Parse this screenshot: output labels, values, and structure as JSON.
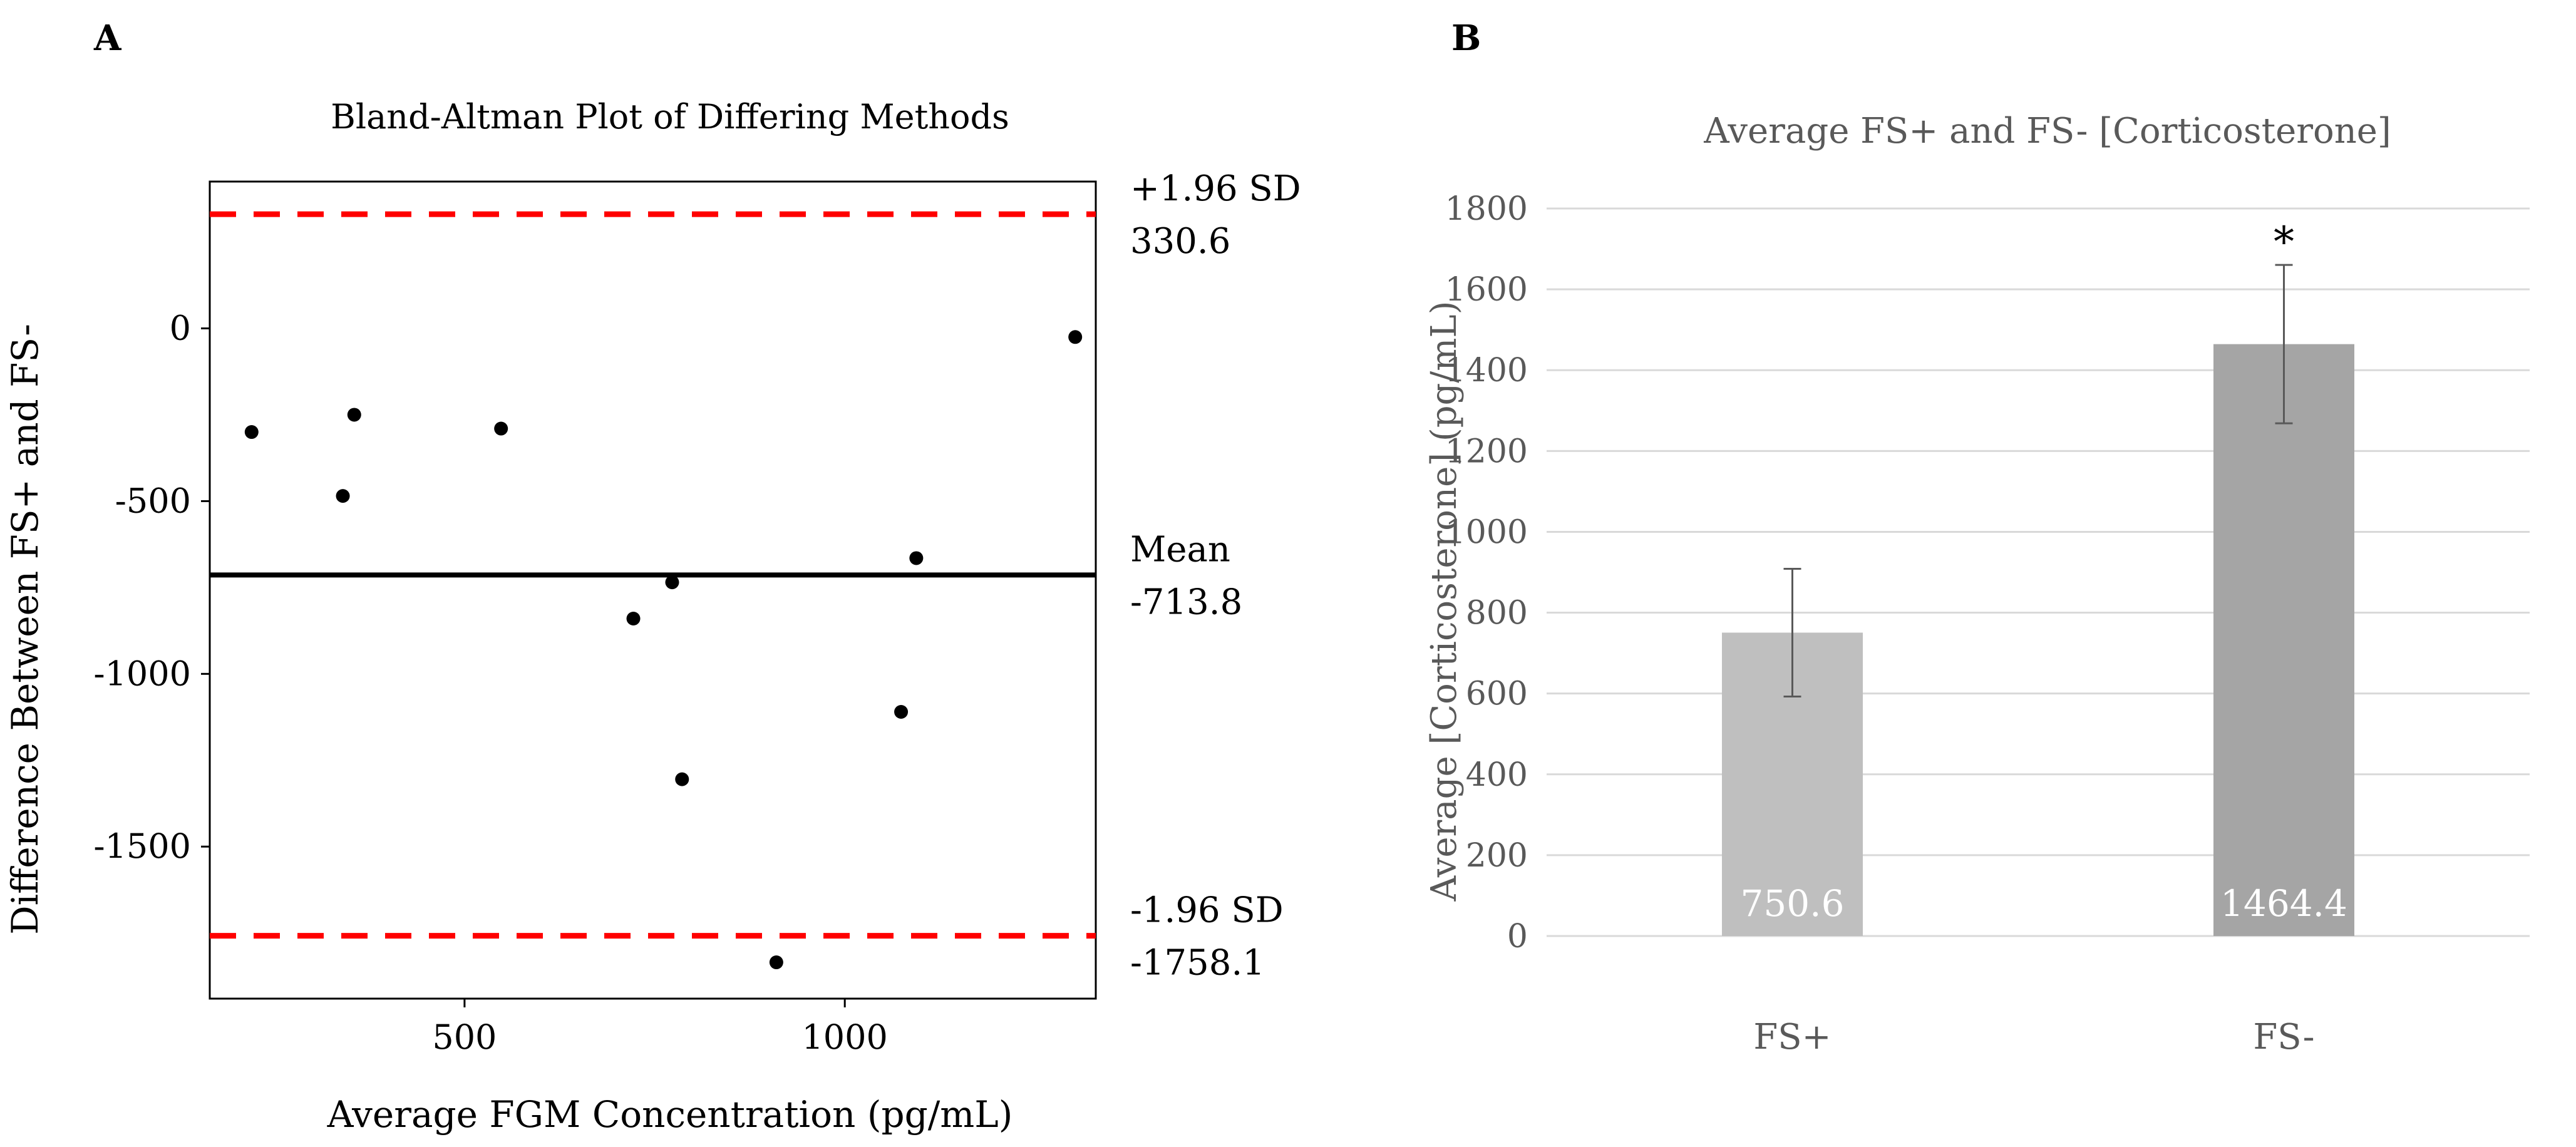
{
  "chart_data": [
    {
      "panel_label": "A",
      "type": "scatter",
      "title": "Bland-Altman Plot of Differing Methods",
      "xlabel": "Average FGM Concentration  (pg/mL)",
      "ylabel": "Difference Between FS+ and FS-",
      "xlim": [
        165,
        1330
      ],
      "ylim": [
        -1940,
        425
      ],
      "xticks": [
        500,
        1000
      ],
      "yticks": [
        0,
        -500,
        -1000,
        -1500
      ],
      "points": [
        {
          "x": 220,
          "y": -300
        },
        {
          "x": 340,
          "y": -485
        },
        {
          "x": 355,
          "y": -250
        },
        {
          "x": 548,
          "y": -290
        },
        {
          "x": 722,
          "y": -840
        },
        {
          "x": 773,
          "y": -735
        },
        {
          "x": 786,
          "y": -1305
        },
        {
          "x": 910,
          "y": -1835
        },
        {
          "x": 1074,
          "y": -1110
        },
        {
          "x": 1094,
          "y": -665
        },
        {
          "x": 1303,
          "y": -25
        }
      ],
      "reference_lines": [
        {
          "name": "upper-limit",
          "y": 330.6,
          "style": "dashed",
          "color": "#ff0000",
          "label": "+1.96 SD",
          "value_label": "330.6"
        },
        {
          "name": "mean",
          "y": -713.8,
          "style": "solid",
          "color": "#000000",
          "label": "Mean",
          "value_label": "-713.8"
        },
        {
          "name": "lower-limit",
          "y": -1758.1,
          "style": "dashed",
          "color": "#ff0000",
          "label": "-1.96 SD",
          "value_label": "-1758.1"
        }
      ],
      "grid": false
    },
    {
      "panel_label": "B",
      "type": "bar",
      "title": "Average FS+ and FS- [Corticosterone]",
      "xlabel": "",
      "ylabel": "Average [Corticosterone]  (pg/mL)",
      "ylim": [
        0,
        1800
      ],
      "yticks": [
        0,
        200,
        400,
        600,
        800,
        1000,
        1200,
        1400,
        1600,
        1800
      ],
      "categories": [
        "FS+",
        "FS-"
      ],
      "values": [
        750.6,
        1464.4
      ],
      "value_labels": [
        "750.6",
        "1464.4"
      ],
      "error": [
        158,
        196
      ],
      "bar_colors": [
        "#bfbfbf",
        "#a5a5a5"
      ],
      "significance": [
        "",
        "*"
      ],
      "grid": true
    }
  ]
}
